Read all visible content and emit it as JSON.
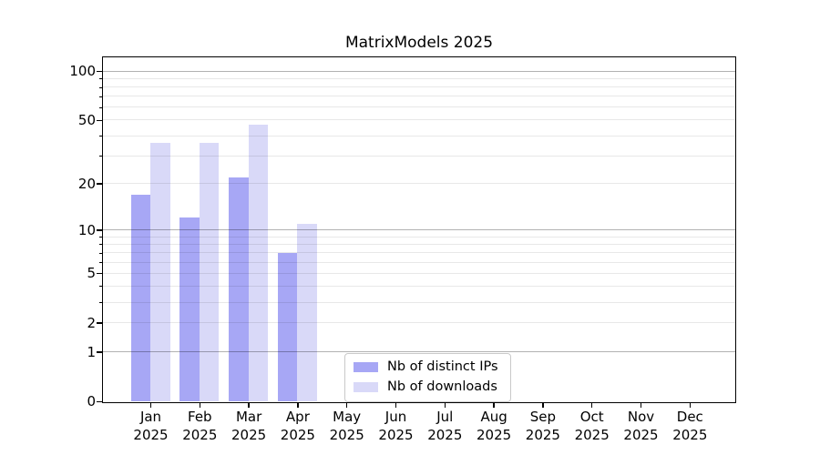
{
  "chart_data": {
    "type": "bar",
    "title": "MatrixModels 2025",
    "categories": [
      "Jan",
      "Feb",
      "Mar",
      "Apr",
      "May",
      "Jun",
      "Jul",
      "Aug",
      "Sep",
      "Oct",
      "Nov",
      "Dec"
    ],
    "year_label": "2025",
    "series": [
      {
        "name": "Nb of distinct IPs",
        "color": "#a7a7f5",
        "values": [
          17,
          12,
          22,
          7,
          0,
          0,
          0,
          0,
          0,
          0,
          0,
          0
        ]
      },
      {
        "name": "Nb of downloads",
        "color": "#d9d9f8",
        "values": [
          36,
          36,
          47,
          11,
          0,
          0,
          0,
          0,
          0,
          0,
          0,
          0
        ]
      }
    ],
    "yscale": "log1p",
    "ylim": [
      0,
      124
    ],
    "yticks": [
      0,
      1,
      2,
      5,
      10,
      20,
      50,
      100
    ],
    "major_gridlines": [
      1,
      10,
      100
    ],
    "minor_gridlines": [
      2,
      3,
      4,
      5,
      6,
      7,
      8,
      9,
      20,
      30,
      40,
      50,
      60,
      70,
      80,
      90
    ],
    "grid": "horizontal",
    "legend_position": "lower-center",
    "colors": {
      "distinct_ips_bar": "#a7a7f5",
      "downloads_bar": "#d9d9f8",
      "major_grid": "rgba(0,0,0,0.30)",
      "minor_grid": "rgba(0,0,0,0.09)",
      "axis": "#000000",
      "background": "#ffffff"
    }
  }
}
